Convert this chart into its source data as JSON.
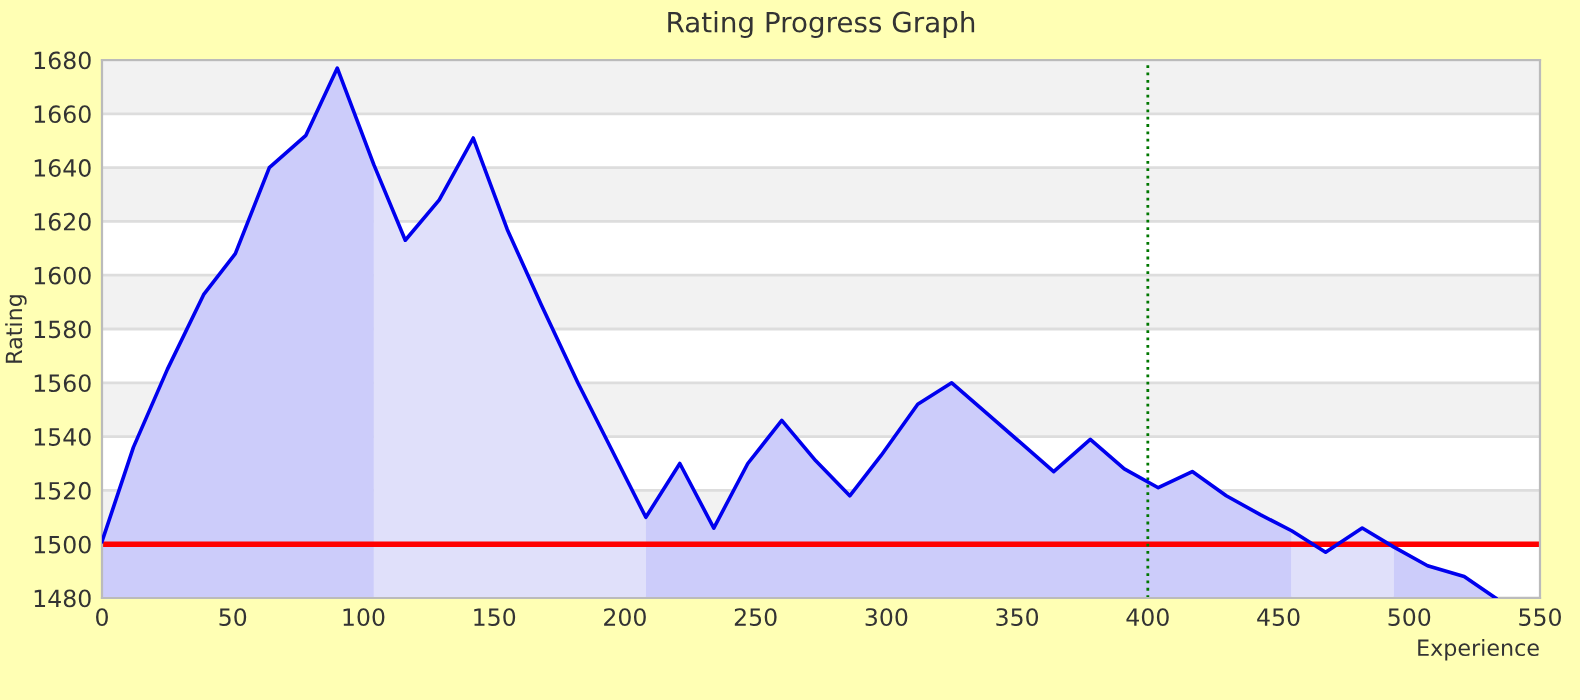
{
  "chart_data": {
    "type": "line",
    "title": "Rating Progress Graph",
    "xlabel": "Experience",
    "ylabel": "Rating",
    "xlim": [
      0,
      550
    ],
    "xticks": [
      0,
      50,
      100,
      150,
      200,
      250,
      300,
      350,
      400,
      450,
      500,
      550
    ],
    "ylim": [
      1480,
      1680
    ],
    "yticks": [
      1480,
      1500,
      1520,
      1540,
      1560,
      1580,
      1600,
      1620,
      1640,
      1660,
      1680
    ],
    "grid": "y",
    "legend": false,
    "marker": "none",
    "line_style": "solid",
    "series": [
      {
        "type": "area",
        "color": "#ccccfa",
        "x": [
          0,
          12,
          25,
          39,
          51,
          64,
          78,
          90,
          104
        ],
        "values": [
          1501,
          1536,
          1565,
          1593,
          1608,
          1640,
          1652,
          1677,
          1641
        ]
      },
      {
        "type": "area",
        "color": "#e0e0fa",
        "x": [
          104,
          116,
          129,
          142,
          155,
          168,
          182,
          195,
          208
        ],
        "values": [
          1641,
          1613,
          1628,
          1651,
          1617,
          1589,
          1560,
          1535,
          1510
        ]
      },
      {
        "type": "area",
        "color": "#ccccfa",
        "x": [
          208,
          221,
          234,
          247,
          260,
          273,
          286,
          298,
          312,
          325,
          338,
          351,
          364,
          378,
          391,
          404,
          417,
          430,
          443,
          455
        ],
        "values": [
          1510,
          1530,
          1506,
          1530,
          1546,
          1531,
          1518,
          1533,
          1552,
          1560,
          1549,
          1538,
          1527,
          1539,
          1528,
          1521,
          1527,
          1518,
          1511,
          1505
        ]
      },
      {
        "type": "area",
        "color": "#e0e0fa",
        "x": [
          455,
          468,
          482,
          494
        ],
        "values": [
          1505,
          1497,
          1506,
          1499
        ]
      },
      {
        "type": "area",
        "color": "#ccccfa",
        "x": [
          494,
          507,
          521,
          533
        ],
        "values": [
          1499,
          1492,
          1488,
          1480
        ]
      },
      {
        "color": "#0000ee",
        "x": [
          0,
          12,
          25,
          39,
          51,
          64,
          78,
          90,
          104,
          116,
          129,
          142,
          155,
          168,
          182,
          195,
          208,
          221,
          234,
          247,
          260,
          273,
          286,
          298,
          312,
          325,
          338,
          351,
          364,
          378,
          391,
          404,
          417,
          430,
          443,
          455,
          468,
          482,
          494,
          507,
          521,
          533
        ],
        "values": [
          1501,
          1536,
          1565,
          1593,
          1608,
          1640,
          1652,
          1677,
          1641,
          1613,
          1628,
          1651,
          1617,
          1589,
          1560,
          1535,
          1510,
          1530,
          1506,
          1530,
          1546,
          1531,
          1518,
          1533,
          1552,
          1560,
          1549,
          1538,
          1527,
          1539,
          1528,
          1521,
          1527,
          1518,
          1511,
          1505,
          1497,
          1506,
          1499,
          1492,
          1488,
          1480
        ]
      }
    ],
    "ref_lines": [
      {
        "axis": "y",
        "value": 1500,
        "color": "#ff0000",
        "line_style": "solid"
      },
      {
        "axis": "x",
        "value": 400,
        "color": "#007700",
        "line_style": "dotted"
      }
    ]
  }
}
